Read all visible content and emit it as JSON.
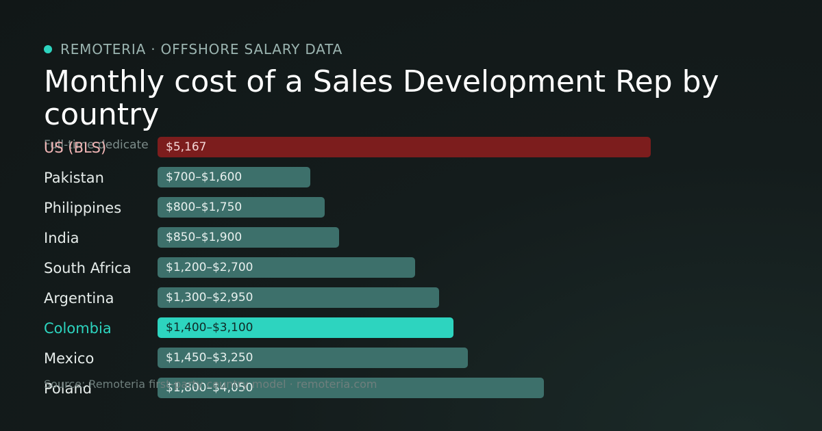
{
  "header": {
    "eyebrow": "REMOTERIA · OFFSHORE SALARY DATA",
    "accent_color": "#2dd4bf"
  },
  "chart_data": {
    "type": "bar",
    "orientation": "horizontal",
    "title": "Monthly cost of a Sales Development Rep by country",
    "subtitle": "Full-time dedicate",
    "footer": "Source: Remoteria first-party country model · remoteria.com",
    "categories": [
      "US (BLS)",
      "Pakistan",
      "Philippines",
      "India",
      "South Africa",
      "Argentina",
      "Colombia",
      "Mexico",
      "Poland"
    ],
    "bars": [
      {
        "label": "US (BLS)",
        "value_text": "$5,167",
        "low": 5167,
        "high": 5167,
        "color": "#7c1d1d",
        "label_color": "#f2b6b6",
        "value_color": "#f4d6d6"
      },
      {
        "label": "Pakistan",
        "value_text": "$700–$1,600",
        "low": 700,
        "high": 1600,
        "color": "#3d706b",
        "label_color": "#e6ecea",
        "value_color": "#e8f0ee"
      },
      {
        "label": "Philippines",
        "value_text": "$800–$1,750",
        "low": 800,
        "high": 1750,
        "color": "#3d706b",
        "label_color": "#e6ecea",
        "value_color": "#e8f0ee"
      },
      {
        "label": "India",
        "value_text": "$850–$1,900",
        "low": 850,
        "high": 1900,
        "color": "#3d706b",
        "label_color": "#e6ecea",
        "value_color": "#e8f0ee"
      },
      {
        "label": "South Africa",
        "value_text": "$1,200–$2,700",
        "low": 1200,
        "high": 2700,
        "color": "#3d706b",
        "label_color": "#e6ecea",
        "value_color": "#e8f0ee"
      },
      {
        "label": "Argentina",
        "value_text": "$1,300–$2,950",
        "low": 1300,
        "high": 2950,
        "color": "#3d706b",
        "label_color": "#e6ecea",
        "value_color": "#e8f0ee"
      },
      {
        "label": "Colombia",
        "value_text": "$1,400–$3,100",
        "low": 1400,
        "high": 3100,
        "color": "#2dd4bf",
        "label_color": "#2dd4bf",
        "value_color": "#0f2a27"
      },
      {
        "label": "Mexico",
        "value_text": "$1,450–$3,250",
        "low": 1450,
        "high": 3250,
        "color": "#3d706b",
        "label_color": "#e6ecea",
        "value_color": "#e8f0ee"
      },
      {
        "label": "Poland",
        "value_text": "$1,800–$4,050",
        "low": 1800,
        "high": 4050,
        "color": "#3d706b",
        "label_color": "#e6ecea",
        "value_color": "#e8f0ee"
      }
    ],
    "grid": false,
    "legend": "none"
  }
}
